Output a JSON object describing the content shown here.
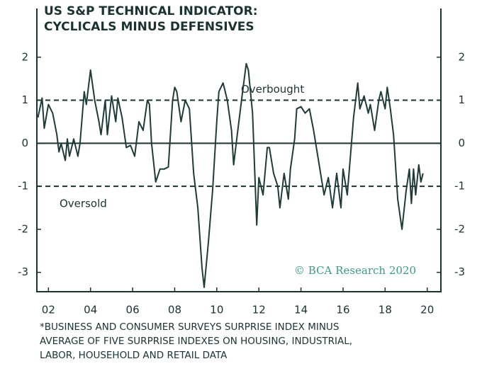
{
  "chart_data": {
    "type": "line",
    "title": [
      "US S&P TECHNICAL INDICATOR:",
      "CYCLICALS MINUS DEFENSIVES"
    ],
    "footnote": [
      "*BUSINESS AND CONSUMER SURVEYS SURPRISE INDEX MINUS",
      "AVERAGE OF FIVE SURPRISE INDEXES ON HOUSING, INDUSTRIAL,",
      "LABOR, HOUSEHOLD AND RETAIL DATA"
    ],
    "source": "© BCA Research 2020",
    "reference_lines": [
      {
        "value": 1,
        "label": "Overbought"
      },
      {
        "value": -1,
        "label": "Oversold"
      }
    ],
    "color": "#1f3b38",
    "xlim": [
      2001.45,
      2020.65
    ],
    "xticks": [
      {
        "value": 2002,
        "label": "02"
      },
      {
        "value": 2004,
        "label": "04"
      },
      {
        "value": 2006,
        "label": "06"
      },
      {
        "value": 2008,
        "label": "08"
      },
      {
        "value": 2010,
        "label": "10"
      },
      {
        "value": 2012,
        "label": "12"
      },
      {
        "value": 2014,
        "label": "14"
      },
      {
        "value": 2016,
        "label": "16"
      },
      {
        "value": 2018,
        "label": "18"
      },
      {
        "value": 2020,
        "label": "20"
      }
    ],
    "ylim": [
      -3.45,
      3
    ],
    "yticks": [
      2,
      1,
      0,
      -1,
      -2,
      -3
    ],
    "x": [
      2001.5,
      2001.7,
      2001.8,
      2002.0,
      2002.2,
      2002.4,
      2002.5,
      2002.6,
      2002.8,
      2002.9,
      2003.0,
      2003.2,
      2003.4,
      2003.5,
      2003.7,
      2003.8,
      2004.0,
      2004.2,
      2004.4,
      2004.5,
      2004.7,
      2004.8,
      2005.0,
      2005.2,
      2005.3,
      2005.5,
      2005.7,
      2005.9,
      2006.1,
      2006.3,
      2006.5,
      2006.7,
      2006.8,
      2006.9,
      2007.1,
      2007.3,
      2007.5,
      2007.7,
      2007.9,
      2008.0,
      2008.1,
      2008.3,
      2008.5,
      2008.7,
      2008.9,
      2009.1,
      2009.3,
      2009.4,
      2009.6,
      2009.8,
      2010.0,
      2010.1,
      2010.3,
      2010.5,
      2010.7,
      2010.8,
      2011.0,
      2011.2,
      2011.4,
      2011.5,
      2011.7,
      2011.9,
      2012.0,
      2012.2,
      2012.4,
      2012.5,
      2012.7,
      2012.9,
      2013.0,
      2013.2,
      2013.4,
      2013.5,
      2013.7,
      2013.8,
      2014.0,
      2014.2,
      2014.4,
      2014.6,
      2014.9,
      2015.1,
      2015.3,
      2015.5,
      2015.7,
      2015.9,
      2016.0,
      2016.2,
      2016.3,
      2016.5,
      2016.7,
      2016.8,
      2017.0,
      2017.2,
      2017.3,
      2017.5,
      2017.7,
      2017.8,
      2018.0,
      2018.1,
      2018.25,
      2018.4,
      2018.6,
      2018.8,
      2019.0,
      2019.15,
      2019.25,
      2019.35,
      2019.45,
      2019.6,
      2019.7,
      2019.8
    ],
    "values": [
      0.6,
      1.05,
      0.35,
      0.9,
      0.7,
      0.2,
      -0.2,
      0.0,
      -0.4,
      0.1,
      -0.3,
      0.1,
      -0.3,
      0.0,
      1.2,
      0.9,
      1.7,
      1.0,
      0.5,
      0.2,
      1.0,
      0.2,
      1.1,
      0.5,
      1.05,
      0.6,
      -0.1,
      -0.05,
      -0.3,
      0.5,
      0.3,
      1.0,
      0.9,
      0.0,
      -0.9,
      -0.6,
      -0.6,
      -0.55,
      1.0,
      1.3,
      1.2,
      0.5,
      1.0,
      0.8,
      -0.7,
      -1.5,
      -2.9,
      -3.35,
      -2.3,
      -1.1,
      0.5,
      1.2,
      1.4,
      1.0,
      0.3,
      -0.5,
      0.3,
      1.1,
      1.85,
      1.7,
      0.7,
      -1.9,
      -0.8,
      -1.2,
      -0.1,
      -0.1,
      -0.7,
      -1.0,
      -1.5,
      -0.7,
      -1.3,
      -0.6,
      0.1,
      0.8,
      0.85,
      0.7,
      0.8,
      0.3,
      -0.6,
      -1.2,
      -0.8,
      -1.5,
      -0.7,
      -1.5,
      -0.6,
      -1.2,
      -0.6,
      0.6,
      1.4,
      0.8,
      1.1,
      0.7,
      0.9,
      0.3,
      1.0,
      1.2,
      0.8,
      1.3,
      0.8,
      0.2,
      -1.3,
      -2.0,
      -1.1,
      -0.6,
      -1.4,
      -0.6,
      -1.2,
      -0.5,
      -0.9,
      -0.7
    ]
  }
}
